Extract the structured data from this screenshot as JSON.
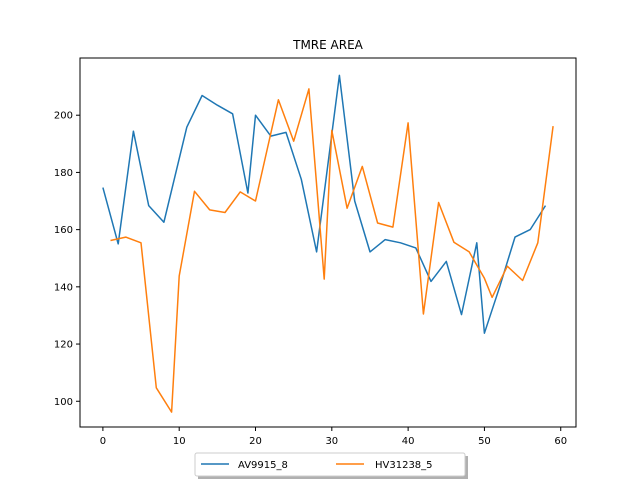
{
  "chart_data": {
    "type": "line",
    "title": "TMRE AREA",
    "xlabel": "",
    "ylabel": "",
    "xlim": [
      -3,
      62
    ],
    "ylim": [
      91,
      220
    ],
    "xticks": [
      0,
      10,
      20,
      30,
      40,
      50,
      60
    ],
    "yticks": [
      100,
      120,
      140,
      160,
      180,
      200
    ],
    "grid": false,
    "legend": "bottom-center",
    "series": [
      {
        "name": "AV9915_8",
        "color": "#1f77b4",
        "x": [
          0,
          2,
          4,
          6,
          8,
          11,
          13,
          15,
          17,
          19,
          20,
          22,
          24,
          26,
          28,
          31,
          33,
          35,
          37,
          39,
          41,
          43,
          45,
          47,
          49,
          50,
          52,
          54,
          56,
          58
        ],
        "y": [
          174.7,
          155.0,
          194.4,
          168.4,
          162.6,
          195.8,
          206.9,
          203.5,
          200.5,
          172.8,
          200.0,
          192.7,
          194.0,
          177.6,
          152.2,
          213.9,
          170.0,
          152.2,
          156.5,
          155.4,
          153.6,
          141.9,
          148.9,
          130.3,
          155.4,
          123.8,
          140.0,
          157.4,
          160.0,
          168.4
        ]
      },
      {
        "name": "HV31238_5",
        "color": "#ff7f0e",
        "x": [
          1,
          3,
          5,
          7,
          9,
          10,
          12,
          14,
          16,
          18,
          20,
          23,
          25,
          27,
          29,
          30,
          32,
          34,
          36,
          38,
          40,
          42,
          44,
          46,
          48,
          50,
          51,
          53,
          55,
          57,
          59
        ],
        "y": [
          156.2,
          157.4,
          155.4,
          104.7,
          96.2,
          143.8,
          173.4,
          166.9,
          166.0,
          173.2,
          170.0,
          205.4,
          190.9,
          209.2,
          142.7,
          194.7,
          167.5,
          182.1,
          162.3,
          160.9,
          197.3,
          130.5,
          169.5,
          155.6,
          152.2,
          143.0,
          136.3,
          147.2,
          142.2,
          155.4,
          196.2
        ]
      }
    ]
  }
}
